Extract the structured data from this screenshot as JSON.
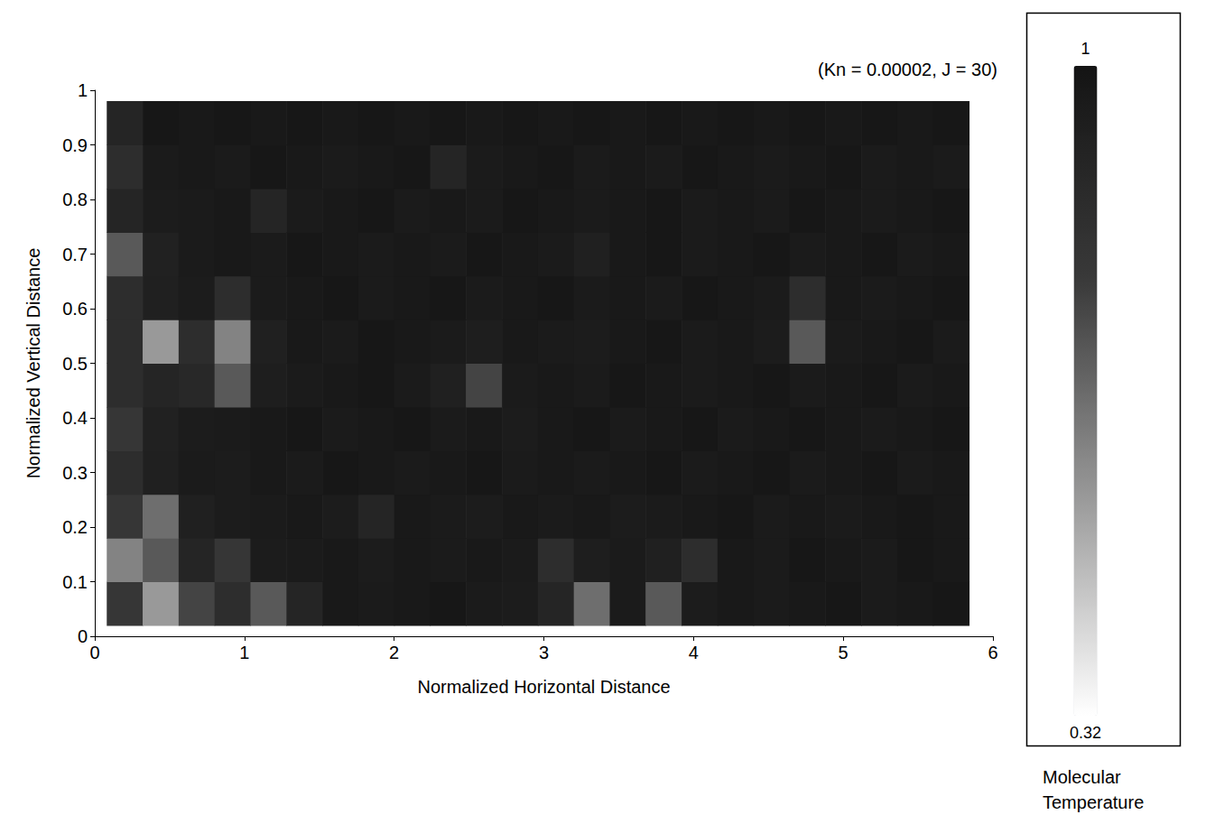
{
  "chart_data": {
    "type": "heatmap",
    "title": "(Kn = 0.00002, J = 30)",
    "x_label": "Normalized Horizontal Distance",
    "y_label": "Normalized Vertical Distance",
    "xlim": [
      0,
      6
    ],
    "xticks": [
      0,
      1,
      2,
      3,
      4,
      5,
      6
    ],
    "ylim": [
      0,
      1
    ],
    "yticks": [
      0,
      0.1,
      0.2,
      0.3,
      0.4,
      0.5,
      0.6,
      0.7,
      0.8,
      0.9,
      1
    ],
    "grid": false,
    "x_bins": [
      0.08,
      0.32,
      0.56,
      0.8,
      1.04,
      1.28,
      1.52,
      1.76,
      2.0,
      2.24,
      2.48,
      2.72,
      2.96,
      3.2,
      3.44,
      3.68,
      3.92,
      4.16,
      4.4,
      4.64,
      4.88,
      5.12,
      5.36,
      5.6,
      5.84
    ],
    "y_bins": [
      0.02,
      0.1,
      0.18,
      0.26,
      0.34,
      0.42,
      0.5,
      0.58,
      0.66,
      0.74,
      0.82,
      0.9,
      0.98
    ],
    "z": [
      [
        0.8,
        0.55,
        0.75,
        0.85,
        0.7,
        0.9,
        0.97,
        0.96,
        0.97,
        0.98,
        0.96,
        0.95,
        0.9,
        0.65,
        0.96,
        0.7,
        0.95,
        0.97,
        0.96,
        0.97,
        0.98,
        0.96,
        0.97,
        0.98
      ],
      [
        0.6,
        0.7,
        0.9,
        0.8,
        0.95,
        0.96,
        0.97,
        0.95,
        0.97,
        0.96,
        0.97,
        0.96,
        0.85,
        0.94,
        0.96,
        0.93,
        0.85,
        0.97,
        0.96,
        0.98,
        0.97,
        0.96,
        0.98,
        0.97
      ],
      [
        0.8,
        0.65,
        0.93,
        0.95,
        0.96,
        0.97,
        0.95,
        0.9,
        0.97,
        0.96,
        0.95,
        0.97,
        0.96,
        0.97,
        0.95,
        0.96,
        0.97,
        0.98,
        0.96,
        0.97,
        0.96,
        0.97,
        0.98,
        0.97
      ],
      [
        0.85,
        0.93,
        0.96,
        0.95,
        0.97,
        0.96,
        0.98,
        0.97,
        0.96,
        0.97,
        0.98,
        0.96,
        0.97,
        0.96,
        0.97,
        0.98,
        0.96,
        0.97,
        0.98,
        0.96,
        0.97,
        0.98,
        0.96,
        0.97
      ],
      [
        0.8,
        0.92,
        0.95,
        0.96,
        0.97,
        0.98,
        0.96,
        0.97,
        0.98,
        0.96,
        0.97,
        0.95,
        0.97,
        0.98,
        0.96,
        0.97,
        0.98,
        0.96,
        0.97,
        0.98,
        0.97,
        0.96,
        0.97,
        0.98
      ],
      [
        0.85,
        0.9,
        0.88,
        0.7,
        0.94,
        0.96,
        0.97,
        0.98,
        0.96,
        0.93,
        0.75,
        0.96,
        0.97,
        0.96,
        0.98,
        0.97,
        0.96,
        0.97,
        0.98,
        0.96,
        0.97,
        0.98,
        0.96,
        0.97
      ],
      [
        0.85,
        0.55,
        0.85,
        0.6,
        0.93,
        0.97,
        0.96,
        0.98,
        0.97,
        0.96,
        0.94,
        0.97,
        0.96,
        0.95,
        0.97,
        0.98,
        0.96,
        0.97,
        0.95,
        0.7,
        0.96,
        0.97,
        0.98,
        0.96
      ],
      [
        0.85,
        0.93,
        0.95,
        0.85,
        0.96,
        0.97,
        0.98,
        0.96,
        0.97,
        0.98,
        0.96,
        0.97,
        0.98,
        0.96,
        0.97,
        0.96,
        0.98,
        0.97,
        0.96,
        0.85,
        0.97,
        0.96,
        0.97,
        0.98
      ],
      [
        0.7,
        0.92,
        0.96,
        0.97,
        0.96,
        0.98,
        0.97,
        0.96,
        0.97,
        0.96,
        0.98,
        0.97,
        0.96,
        0.93,
        0.97,
        0.98,
        0.96,
        0.97,
        0.98,
        0.96,
        0.97,
        0.98,
        0.96,
        0.97
      ],
      [
        0.9,
        0.95,
        0.96,
        0.97,
        0.9,
        0.96,
        0.97,
        0.98,
        0.96,
        0.97,
        0.96,
        0.98,
        0.97,
        0.96,
        0.97,
        0.98,
        0.96,
        0.97,
        0.96,
        0.98,
        0.97,
        0.96,
        0.97,
        0.98
      ],
      [
        0.85,
        0.96,
        0.97,
        0.96,
        0.98,
        0.97,
        0.96,
        0.97,
        0.98,
        0.9,
        0.96,
        0.97,
        0.98,
        0.96,
        0.97,
        0.96,
        0.98,
        0.97,
        0.96,
        0.97,
        0.98,
        0.96,
        0.97,
        0.96
      ],
      [
        0.9,
        0.98,
        0.97,
        0.98,
        0.97,
        0.98,
        0.97,
        0.98,
        0.97,
        0.98,
        0.97,
        0.98,
        0.97,
        0.98,
        0.97,
        0.98,
        0.97,
        0.98,
        0.97,
        0.98,
        0.97,
        0.98,
        0.97,
        0.98
      ]
    ],
    "colorbar": {
      "label": "Molecular Temperature",
      "range": [
        0.32,
        1
      ],
      "ticks": [
        0.32,
        1
      ]
    }
  }
}
